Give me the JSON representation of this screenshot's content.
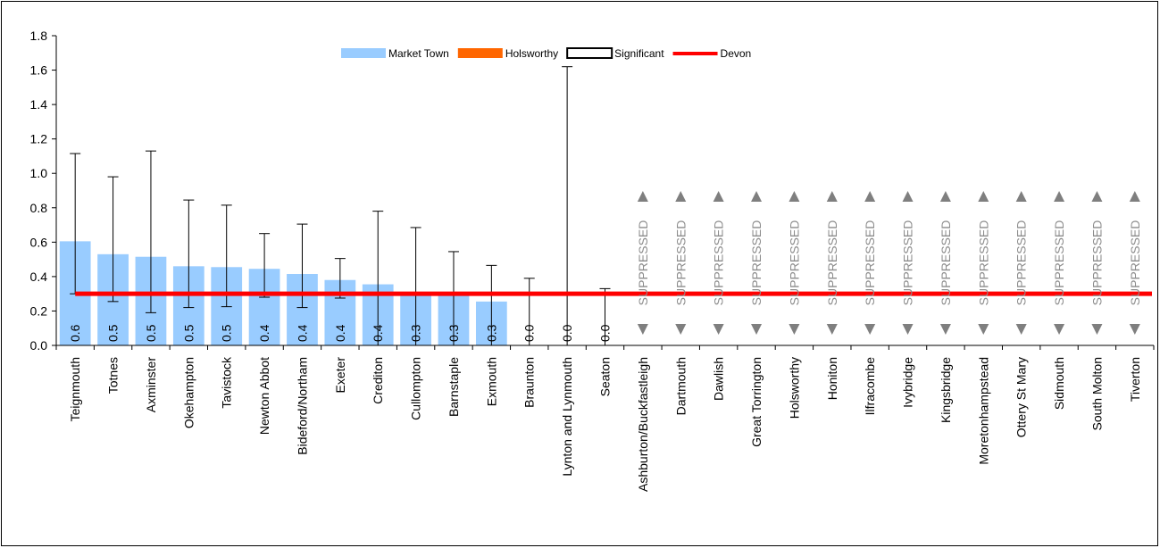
{
  "chart_data": {
    "type": "bar",
    "title": "",
    "xlabel": "",
    "ylabel": "",
    "ylim": [
      0,
      1.8
    ],
    "yticks": [
      "0.0",
      "0.2",
      "0.4",
      "0.6",
      "0.8",
      "1.0",
      "1.2",
      "1.4",
      "1.6",
      "1.8"
    ],
    "grid": false,
    "legend_position": "top-center",
    "legend": [
      {
        "label": "Market Town",
        "kind": "bar",
        "color": "#99ccff"
      },
      {
        "label": "Holsworthy",
        "kind": "bar",
        "color": "#ff6600"
      },
      {
        "label": "Significant",
        "kind": "outline",
        "color": "#000000"
      },
      {
        "label": "Devon",
        "kind": "line",
        "color": "#ff0000"
      }
    ],
    "devon_value": 0.3,
    "suppressed_text": "SUPPRESSED",
    "categories": [
      "Teignmouth",
      "Totnes",
      "Axminster",
      "Okehampton",
      "Tavistock",
      "Newton Abbot",
      "Bideford/Northam",
      "Exeter",
      "Crediton",
      "Cullompton",
      "Barnstaple",
      "Exmouth",
      "Braunton",
      "Lynton and Lynmouth",
      "Seaton",
      "Ashburton/Buckfastleigh",
      "Dartmouth",
      "Dawlish",
      "Great Torrington",
      "Holsworthy",
      "Honiton",
      "Ilfracombe",
      "Ivybridge",
      "Kingsbridge",
      "Moretonhampstead",
      "Ottery St Mary",
      "Sidmouth",
      "South Molton",
      "Tiverton"
    ],
    "values": [
      0.605,
      0.53,
      0.515,
      0.46,
      0.455,
      0.445,
      0.415,
      0.38,
      0.355,
      0.31,
      0.31,
      0.255,
      0.0,
      0.0,
      0.0,
      null,
      null,
      null,
      null,
      null,
      null,
      null,
      null,
      null,
      null,
      null,
      null,
      null,
      null
    ],
    "data_labels": [
      "0.6",
      "0.5",
      "0.5",
      "0.5",
      "0.5",
      "0.4",
      "0.4",
      "0.4",
      "0.4",
      "0.3",
      "0.3",
      "0.3",
      "0.0",
      "0.0",
      "0.0",
      null,
      null,
      null,
      null,
      null,
      null,
      null,
      null,
      null,
      null,
      null,
      null,
      null,
      null
    ],
    "ci_upper": [
      1.115,
      0.98,
      1.13,
      0.845,
      0.815,
      0.65,
      0.705,
      0.505,
      0.78,
      0.685,
      0.545,
      0.465,
      0.39,
      1.62,
      0.33,
      null,
      null,
      null,
      null,
      null,
      null,
      null,
      null,
      null,
      null,
      null,
      null,
      null,
      null
    ],
    "ci_lower": [
      0.3,
      0.255,
      0.19,
      0.22,
      0.225,
      0.28,
      0.22,
      0.275,
      0.0,
      0.0,
      0.0,
      0.0,
      0.0,
      0.0,
      0.0,
      null,
      null,
      null,
      null,
      null,
      null,
      null,
      null,
      null,
      null,
      null,
      null,
      null,
      null
    ],
    "suppressed": [
      false,
      false,
      false,
      false,
      false,
      false,
      false,
      false,
      false,
      false,
      false,
      false,
      false,
      false,
      false,
      true,
      true,
      true,
      true,
      true,
      true,
      true,
      true,
      true,
      true,
      true,
      true,
      true,
      true
    ]
  }
}
